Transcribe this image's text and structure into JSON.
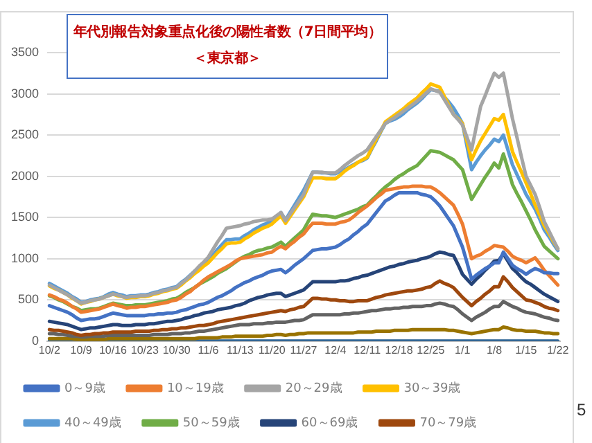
{
  "chart_data": {
    "type": "line",
    "title": "年代別報告対象重点化後の陽性者数（7日間平均）",
    "subtitle": "＜東京都＞",
    "categories": [
      "10/2",
      null,
      null,
      null,
      null,
      null,
      null,
      "10/9",
      null,
      null,
      null,
      null,
      null,
      null,
      "10/16",
      null,
      null,
      null,
      null,
      null,
      null,
      "10/23",
      null,
      null,
      null,
      null,
      null,
      null,
      "10/30",
      null,
      null,
      null,
      null,
      null,
      null,
      "11/6",
      null,
      null,
      null,
      null,
      null,
      null,
      "11/13",
      null,
      null,
      null,
      null,
      null,
      null,
      "11/20",
      null,
      null,
      null,
      null,
      null,
      null,
      "11/27",
      null,
      null,
      null,
      null,
      null,
      null,
      "12/4",
      null,
      null,
      null,
      null,
      null,
      null,
      "12/11",
      null,
      null,
      null,
      null,
      null,
      null,
      "12/18",
      null,
      null,
      null,
      null,
      null,
      null,
      "12/25",
      null,
      null,
      null,
      null,
      null,
      null,
      "1/1",
      null,
      null,
      null,
      null,
      null,
      null,
      "1/8",
      null,
      null,
      null,
      null,
      null,
      null,
      "1/15",
      null,
      null,
      null,
      null,
      null,
      null,
      "1/22"
    ],
    "ylim": [
      0,
      3500
    ],
    "yticks": [
      0,
      500,
      1000,
      1500,
      2000,
      2500,
      3000,
      3500
    ],
    "grid": "y",
    "legend": "bottom",
    "series": [
      {
        "name": "0～9歳",
        "color": "#4472c4",
        "values": [
          430,
          410,
          390,
          370,
          350,
          320,
          280,
          250,
          260,
          270,
          270,
          280,
          300,
          320,
          340,
          330,
          320,
          310,
          310,
          310,
          310,
          310,
          320,
          320,
          330,
          330,
          340,
          340,
          350,
          370,
          380,
          400,
          420,
          440,
          450,
          470,
          500,
          530,
          550,
          580,
          610,
          650,
          680,
          710,
          730,
          760,
          780,
          800,
          830,
          850,
          860,
          870,
          830,
          870,
          920,
          960,
          1000,
          1050,
          1100,
          1110,
          1120,
          1120,
          1130,
          1140,
          1170,
          1210,
          1240,
          1290,
          1330,
          1380,
          1420,
          1490,
          1560,
          1630,
          1700,
          1730,
          1770,
          1800,
          1800,
          1800,
          1800,
          1800,
          1780,
          1770,
          1750,
          1700,
          1640,
          1560,
          1480,
          1400,
          1270,
          1140,
          950,
          750,
          800,
          840,
          880,
          910,
          950,
          950,
          1080,
          1000,
          920,
          880,
          850,
          810,
          850,
          880,
          860,
          830,
          830,
          820,
          820
        ]
      },
      {
        "name": "10～19歳",
        "color": "#ed7d31",
        "values": [
          560,
          540,
          510,
          490,
          460,
          420,
          390,
          350,
          360,
          370,
          380,
          390,
          410,
          430,
          450,
          430,
          420,
          400,
          410,
          410,
          420,
          420,
          430,
          440,
          450,
          460,
          470,
          490,
          500,
          530,
          570,
          600,
          650,
          690,
          740,
          780,
          810,
          840,
          870,
          900,
          930,
          970,
          1000,
          1010,
          1020,
          1030,
          1040,
          1050,
          1070,
          1080,
          1120,
          1150,
          1120,
          1170,
          1210,
          1260,
          1300,
          1370,
          1430,
          1430,
          1430,
          1420,
          1420,
          1420,
          1440,
          1450,
          1470,
          1510,
          1560,
          1600,
          1640,
          1690,
          1740,
          1780,
          1830,
          1840,
          1850,
          1860,
          1870,
          1870,
          1880,
          1880,
          1880,
          1870,
          1870,
          1840,
          1800,
          1750,
          1700,
          1650,
          1540,
          1420,
          1210,
          1000,
          1030,
          1050,
          1090,
          1120,
          1160,
          1150,
          1140,
          1090,
          1030,
          1000,
          980,
          950,
          980,
          1010,
          940,
          860,
          800,
          740,
          680
        ]
      },
      {
        "name": "20～29歳",
        "color": "#a5a5a5",
        "values": [
          680,
          650,
          620,
          590,
          560,
          530,
          490,
          460,
          470,
          490,
          500,
          510,
          530,
          550,
          570,
          560,
          540,
          530,
          540,
          540,
          550,
          550,
          560,
          580,
          590,
          610,
          620,
          640,
          650,
          700,
          740,
          790,
          850,
          910,
          960,
          1020,
          1110,
          1200,
          1280,
          1370,
          1380,
          1390,
          1400,
          1420,
          1430,
          1450,
          1460,
          1470,
          1470,
          1480,
          1520,
          1560,
          1460,
          1540,
          1620,
          1700,
          1780,
          1920,
          2050,
          2050,
          2050,
          2040,
          2040,
          2040,
          2080,
          2130,
          2170,
          2210,
          2250,
          2280,
          2320,
          2400,
          2480,
          2560,
          2640,
          2680,
          2710,
          2750,
          2790,
          2830,
          2870,
          2910,
          2960,
          3010,
          3060,
          3040,
          3020,
          2930,
          2840,
          2750,
          2690,
          2620,
          2470,
          2320,
          2590,
          2850,
          2980,
          3120,
          3250,
          3200,
          3250,
          2980,
          2700,
          2470,
          2230,
          2000,
          1890,
          1780,
          1620,
          1450,
          1340,
          1230,
          1120
        ]
      },
      {
        "name": "30～39歳",
        "color": "#ffc000",
        "values": [
          670,
          640,
          620,
          590,
          560,
          520,
          490,
          450,
          470,
          480,
          500,
          510,
          530,
          550,
          570,
          550,
          540,
          520,
          530,
          530,
          540,
          540,
          550,
          570,
          580,
          600,
          610,
          630,
          640,
          680,
          730,
          770,
          820,
          860,
          910,
          950,
          1010,
          1070,
          1120,
          1180,
          1190,
          1190,
          1200,
          1240,
          1270,
          1310,
          1340,
          1370,
          1390,
          1420,
          1470,
          1520,
          1430,
          1510,
          1590,
          1670,
          1750,
          1870,
          1980,
          1980,
          1980,
          1970,
          1970,
          1970,
          2010,
          2060,
          2100,
          2130,
          2170,
          2200,
          2230,
          2340,
          2450,
          2550,
          2660,
          2700,
          2740,
          2780,
          2820,
          2870,
          2910,
          2950,
          3010,
          3060,
          3120,
          3100,
          3080,
          2970,
          2860,
          2750,
          2700,
          2640,
          2420,
          2200,
          2320,
          2430,
          2520,
          2610,
          2700,
          2680,
          2750,
          2530,
          2300,
          2170,
          2050,
          1920,
          1790,
          1650,
          1530,
          1400,
          1310,
          1210,
          1120
        ]
      },
      {
        "name": "40～49歳",
        "color": "#5b9bd5",
        "values": [
          700,
          670,
          640,
          610,
          580,
          540,
          510,
          470,
          480,
          500,
          510,
          520,
          540,
          570,
          590,
          570,
          560,
          540,
          550,
          550,
          560,
          560,
          570,
          590,
          600,
          620,
          630,
          650,
          660,
          710,
          750,
          800,
          850,
          890,
          940,
          980,
          1040,
          1110,
          1170,
          1230,
          1230,
          1240,
          1240,
          1280,
          1310,
          1350,
          1380,
          1410,
          1430,
          1460,
          1510,
          1560,
          1470,
          1560,
          1650,
          1740,
          1830,
          1940,
          2050,
          2050,
          2040,
          2040,
          2030,
          2030,
          2060,
          2080,
          2110,
          2140,
          2170,
          2190,
          2220,
          2330,
          2430,
          2540,
          2640,
          2670,
          2690,
          2720,
          2760,
          2810,
          2850,
          2890,
          2940,
          3000,
          3050,
          3040,
          3030,
          2960,
          2900,
          2830,
          2740,
          2640,
          2360,
          2080,
          2170,
          2250,
          2320,
          2380,
          2450,
          2420,
          2500,
          2320,
          2140,
          2020,
          1900,
          1780,
          1690,
          1600,
          1480,
          1350,
          1270,
          1180,
          1100
        ]
      },
      {
        "name": "50～59歳",
        "color": "#70ad47",
        "values": [
          550,
          530,
          500,
          480,
          450,
          420,
          400,
          370,
          380,
          390,
          390,
          400,
          420,
          440,
          460,
          450,
          440,
          430,
          430,
          440,
          440,
          440,
          450,
          460,
          470,
          480,
          490,
          510,
          520,
          550,
          590,
          620,
          650,
          690,
          720,
          750,
          780,
          820,
          850,
          880,
          920,
          960,
          1000,
          1030,
          1050,
          1080,
          1100,
          1110,
          1130,
          1140,
          1170,
          1200,
          1150,
          1200,
          1250,
          1300,
          1350,
          1450,
          1540,
          1530,
          1520,
          1520,
          1510,
          1500,
          1520,
          1540,
          1560,
          1580,
          1600,
          1630,
          1650,
          1710,
          1760,
          1820,
          1870,
          1910,
          1960,
          2000,
          2030,
          2070,
          2100,
          2130,
          2190,
          2250,
          2310,
          2300,
          2290,
          2260,
          2230,
          2200,
          2140,
          2080,
          1900,
          1720,
          1810,
          1900,
          1990,
          2070,
          2160,
          2100,
          2270,
          2090,
          1900,
          1790,
          1690,
          1580,
          1470,
          1350,
          1250,
          1150,
          1100,
          1050,
          1000
        ]
      },
      {
        "name": "60～69歳",
        "color": "#264478",
        "values": [
          240,
          230,
          220,
          210,
          200,
          180,
          160,
          140,
          150,
          160,
          160,
          170,
          180,
          190,
          200,
          200,
          190,
          190,
          190,
          200,
          200,
          200,
          210,
          210,
          220,
          230,
          240,
          240,
          250,
          260,
          280,
          290,
          310,
          320,
          340,
          350,
          360,
          380,
          390,
          400,
          410,
          430,
          440,
          460,
          490,
          510,
          530,
          540,
          560,
          570,
          580,
          580,
          540,
          560,
          580,
          600,
          620,
          670,
          720,
          720,
          720,
          720,
          720,
          720,
          730,
          730,
          740,
          760,
          770,
          790,
          800,
          820,
          840,
          860,
          880,
          900,
          910,
          930,
          940,
          960,
          970,
          980,
          1000,
          1010,
          1030,
          1060,
          1080,
          1070,
          1050,
          1040,
          930,
          810,
          750,
          690,
          750,
          800,
          860,
          910,
          970,
          980,
          1060,
          970,
          880,
          830,
          770,
          720,
          690,
          650,
          610,
          570,
          540,
          510,
          480
        ]
      },
      {
        "name": "70～79歳",
        "color": "#9e480e",
        "values": [
          140,
          130,
          130,
          120,
          110,
          100,
          80,
          70,
          80,
          80,
          90,
          90,
          100,
          100,
          110,
          110,
          110,
          110,
          110,
          120,
          120,
          120,
          120,
          130,
          130,
          140,
          140,
          150,
          150,
          160,
          160,
          170,
          180,
          190,
          190,
          200,
          210,
          230,
          240,
          250,
          260,
          270,
          280,
          290,
          300,
          310,
          320,
          330,
          340,
          350,
          360,
          370,
          360,
          380,
          390,
          410,
          420,
          470,
          520,
          520,
          510,
          510,
          500,
          500,
          490,
          490,
          480,
          480,
          490,
          490,
          490,
          510,
          530,
          540,
          560,
          570,
          580,
          590,
          600,
          610,
          610,
          620,
          630,
          650,
          660,
          700,
          730,
          700,
          680,
          650,
          590,
          530,
          480,
          430,
          480,
          520,
          570,
          610,
          660,
          660,
          780,
          720,
          650,
          600,
          550,
          500,
          490,
          470,
          450,
          420,
          400,
          390,
          370
        ]
      },
      {
        "color": "#636363",
        "values": [
          90,
          90,
          80,
          80,
          70,
          60,
          60,
          50,
          50,
          60,
          60,
          60,
          60,
          70,
          70,
          70,
          70,
          70,
          70,
          70,
          70,
          70,
          70,
          80,
          80,
          80,
          80,
          90,
          90,
          90,
          100,
          100,
          110,
          120,
          120,
          130,
          140,
          150,
          160,
          170,
          180,
          190,
          200,
          200,
          200,
          210,
          210,
          210,
          220,
          220,
          230,
          230,
          230,
          240,
          250,
          250,
          260,
          290,
          320,
          320,
          320,
          320,
          320,
          320,
          320,
          330,
          330,
          340,
          340,
          350,
          360,
          370,
          370,
          380,
          390,
          390,
          400,
          400,
          410,
          410,
          420,
          420,
          420,
          430,
          430,
          450,
          460,
          450,
          430,
          420,
          380,
          330,
          290,
          250,
          290,
          320,
          350,
          390,
          420,
          420,
          480,
          450,
          420,
          400,
          370,
          350,
          340,
          330,
          310,
          290,
          280,
          260,
          250
        ]
      },
      {
        "color": "#997300",
        "values": [
          30,
          30,
          30,
          30,
          30,
          30,
          20,
          20,
          20,
          20,
          20,
          20,
          20,
          30,
          30,
          30,
          30,
          30,
          30,
          30,
          30,
          30,
          30,
          30,
          30,
          30,
          30,
          30,
          30,
          30,
          30,
          30,
          30,
          40,
          40,
          40,
          40,
          40,
          50,
          50,
          50,
          60,
          60,
          60,
          60,
          60,
          60,
          60,
          70,
          70,
          80,
          80,
          70,
          80,
          80,
          90,
          90,
          100,
          100,
          100,
          100,
          100,
          100,
          100,
          100,
          100,
          100,
          100,
          110,
          110,
          110,
          110,
          120,
          120,
          120,
          120,
          130,
          130,
          130,
          130,
          140,
          140,
          140,
          140,
          140,
          140,
          140,
          140,
          130,
          130,
          120,
          110,
          100,
          90,
          100,
          110,
          120,
          130,
          140,
          140,
          170,
          160,
          140,
          130,
          130,
          120,
          120,
          120,
          110,
          100,
          100,
          90,
          90
        ]
      },
      {
        "color": "#255e91",
        "values": [
          0,
          0,
          0,
          0,
          0,
          0,
          0,
          0,
          0,
          0,
          0,
          0,
          0,
          0,
          0,
          0,
          0,
          0,
          0,
          0,
          0,
          0,
          0,
          0,
          0,
          0,
          0,
          0,
          0,
          0,
          0,
          0,
          0,
          0,
          0,
          0,
          0,
          0,
          0,
          0,
          0,
          0,
          0,
          0,
          0,
          0,
          0,
          0,
          0,
          0,
          0,
          0,
          0,
          0,
          0,
          0,
          0,
          0,
          0,
          0,
          0,
          0,
          0,
          0,
          0,
          0,
          0,
          0,
          0,
          0,
          0,
          0,
          0,
          0,
          0,
          0,
          0,
          0,
          0,
          0,
          0,
          0,
          0,
          0,
          0,
          0,
          0,
          0,
          0,
          0,
          0,
          0,
          0,
          0,
          0,
          0,
          0,
          0,
          0,
          0,
          0,
          0,
          0,
          0,
          0,
          0,
          0,
          0,
          0,
          0,
          0,
          0,
          0
        ]
      }
    ],
    "annotations": [
      "5"
    ]
  }
}
